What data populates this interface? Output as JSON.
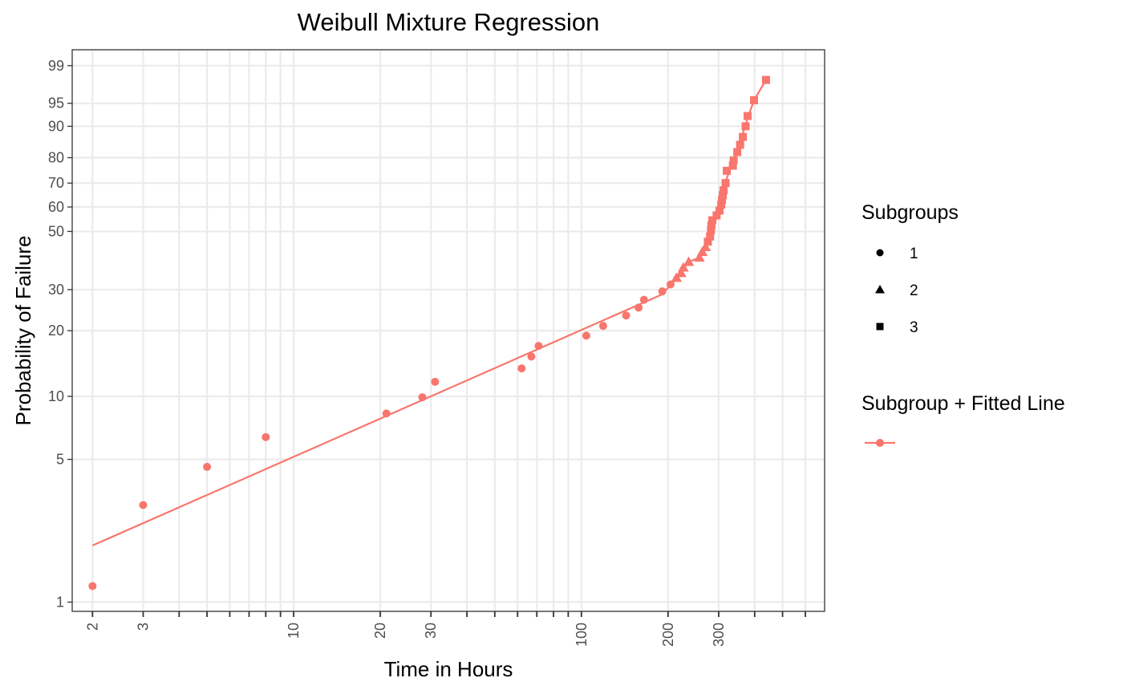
{
  "chart_data": {
    "type": "scatter",
    "title": "Weibull Mixture Regression",
    "xlabel": "Time in Hours",
    "ylabel": "Probability of Failure",
    "x_scale": "log",
    "y_scale": "weibull",
    "xlim": [
      1.7,
      700
    ],
    "ylim": [
      0.9,
      99.6
    ],
    "x_ticks": [
      2,
      3,
      10,
      20,
      30,
      100,
      200,
      300
    ],
    "x_minor_ticks": [
      4,
      5,
      6,
      7,
      8,
      9,
      40,
      50,
      60,
      70,
      80,
      90,
      400,
      500,
      600
    ],
    "y_ticks": [
      1,
      5,
      10,
      20,
      30,
      50,
      60,
      70,
      80,
      90,
      95,
      99
    ],
    "grid": true,
    "legend_position": "right",
    "color": "#F8766D",
    "legend": {
      "shape_title": "Subgroups",
      "shape_items": [
        {
          "label": "1",
          "shape": "circle"
        },
        {
          "label": "2",
          "shape": "triangle"
        },
        {
          "label": "3",
          "shape": "square"
        }
      ],
      "line_title": "Subgroup + Fitted Line"
    },
    "series": [
      {
        "subgroup": "1",
        "shape": "circle",
        "points": [
          [
            2,
            1.2
          ],
          [
            3,
            3.0
          ],
          [
            5,
            4.6
          ],
          [
            8,
            6.4
          ],
          [
            21,
            8.3
          ],
          [
            28,
            9.9
          ],
          [
            31,
            11.7
          ],
          [
            62,
            13.5
          ],
          [
            67,
            15.3
          ],
          [
            71,
            17.1
          ],
          [
            104,
            19.0
          ],
          [
            119,
            21.0
          ],
          [
            143,
            23.3
          ],
          [
            158,
            25.2
          ],
          [
            165,
            27.2
          ],
          [
            191,
            29.5
          ],
          [
            204,
            31.5
          ]
        ],
        "fit": [
          [
            2,
            1.9
          ],
          [
            190,
            28.6
          ],
          [
            218,
            34.0
          ]
        ]
      },
      {
        "subgroup": "2",
        "shape": "triangle",
        "points": [
          [
            214,
            33.5
          ],
          [
            222,
            35.0
          ],
          [
            226,
            36.8
          ],
          [
            236,
            38.7
          ],
          [
            257,
            40.2
          ],
          [
            263,
            42.2
          ],
          [
            270,
            44.0
          ]
        ],
        "fit": [
          [
            214,
            33.5
          ],
          [
            236,
            38.7
          ],
          [
            257,
            40.2
          ],
          [
            270,
            44.0
          ]
        ]
      },
      {
        "subgroup": "3",
        "shape": "square",
        "points": [
          [
            275,
            46.0
          ],
          [
            280,
            48.0
          ],
          [
            282,
            50.5
          ],
          [
            283,
            52.5
          ],
          [
            285,
            54.5
          ],
          [
            295,
            56.5
          ],
          [
            302,
            58.5
          ],
          [
            306,
            61.0
          ],
          [
            308,
            63.0
          ],
          [
            310,
            65.0
          ],
          [
            312,
            67.0
          ],
          [
            317,
            70.0
          ],
          [
            320,
            75.0
          ],
          [
            336,
            77.0
          ],
          [
            338,
            79.0
          ],
          [
            348,
            82.0
          ],
          [
            356,
            84.5
          ],
          [
            364,
            87.0
          ],
          [
            372,
            90.0
          ],
          [
            378,
            92.5
          ],
          [
            398,
            95.5
          ],
          [
            438,
            98.0
          ]
        ],
        "fit": [
          [
            275,
            46.0
          ],
          [
            300,
            58.0
          ],
          [
            320,
            72.0
          ],
          [
            345,
            81.0
          ],
          [
            378,
            92.0
          ],
          [
            398,
            95.5
          ],
          [
            438,
            98.0
          ]
        ]
      }
    ]
  }
}
